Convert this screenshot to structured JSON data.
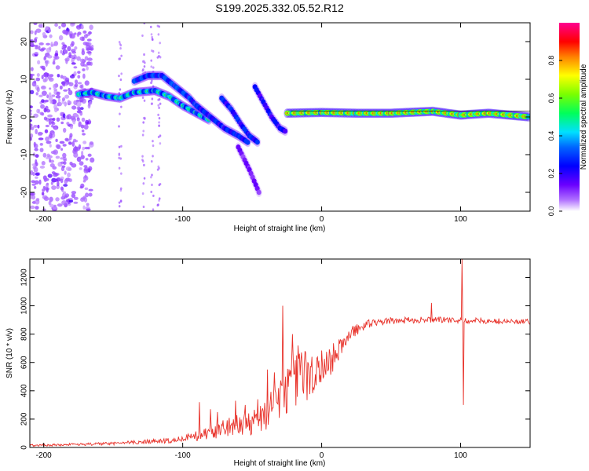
{
  "figure_title": "S199.2025.332.05.52.R12",
  "chart_data": [
    {
      "type": "heatmap",
      "title": "S199.2025.332.05.52.R12",
      "xlabel": "Height of straight line (km)",
      "ylabel": "Frequency (Hz)",
      "xlim": [
        -210,
        150
      ],
      "ylim": [
        -25,
        25
      ],
      "x_ticks": [
        -200,
        -100,
        0,
        100
      ],
      "x_tick_labels": [
        "-200",
        "-100",
        "0",
        "100"
      ],
      "y_ticks": [
        20,
        10,
        0,
        -10,
        -20
      ],
      "y_tick_labels": [
        "20",
        "10",
        "0",
        "-10",
        "-20"
      ],
      "grid": false,
      "colorbar": {
        "label": "Normalized spectral amplitude",
        "range": [
          0,
          1
        ],
        "ticks": [
          0.0,
          0.2,
          0.4,
          0.6,
          0.8
        ],
        "tick_labels": [
          "0.0",
          "0.2",
          "0.4",
          "0.6",
          "0.8"
        ],
        "colormap": "rainbow (white-violet-blue-cyan-green-yellow-red-magenta)"
      },
      "ridges": [
        {
          "name": "main-band-left",
          "points": [
            [
              -175,
              6
            ],
            [
              -165,
              6.5
            ],
            [
              -155,
              5.5
            ],
            [
              -145,
              5
            ],
            [
              -135,
              6.5
            ],
            [
              -120,
              7
            ],
            [
              -110,
              5.5
            ],
            [
              -100,
              3
            ],
            [
              -90,
              1
            ],
            [
              -80,
              -1
            ]
          ],
          "amplitude": 0.55
        },
        {
          "name": "upper-arc",
          "points": [
            [
              -135,
              9.5
            ],
            [
              -125,
              11
            ],
            [
              -115,
              11
            ],
            [
              -105,
              8
            ],
            [
              -95,
              5
            ],
            [
              -88,
              2
            ]
          ],
          "amplitude": 0.45
        },
        {
          "name": "dispersive-branch-1",
          "points": [
            [
              -90,
              3
            ],
            [
              -80,
              0
            ],
            [
              -70,
              -3
            ],
            [
              -60,
              -5
            ],
            [
              -52,
              -7
            ]
          ],
          "amplitude": 0.4
        },
        {
          "name": "dispersive-branch-2",
          "points": [
            [
              -72,
              5
            ],
            [
              -65,
              2
            ],
            [
              -58,
              -2
            ],
            [
              -52,
              -5
            ],
            [
              -45,
              -7
            ]
          ],
          "amplitude": 0.4
        },
        {
          "name": "dispersive-branch-3",
          "points": [
            [
              -48,
              8
            ],
            [
              -42,
              4
            ],
            [
              -36,
              0
            ],
            [
              -30,
              -3
            ],
            [
              -25,
              -4
            ]
          ],
          "amplitude": 0.35
        },
        {
          "name": "steep-tail",
          "points": [
            [
              -60,
              -8
            ],
            [
              -52,
              -14
            ],
            [
              -44,
              -21
            ]
          ],
          "amplitude": 0.2
        },
        {
          "name": "stable-band",
          "points": [
            [
              -25,
              1
            ],
            [
              0,
              1.2
            ],
            [
              25,
              1
            ],
            [
              50,
              1
            ],
            [
              80,
              1.5
            ],
            [
              100,
              0.5
            ],
            [
              120,
              1
            ],
            [
              150,
              0
            ]
          ],
          "amplitude": 0.85
        }
      ]
    },
    {
      "type": "line",
      "title": "",
      "xlabel": "Height of straight line (km)",
      "ylabel": "SNR (10 * v/v)",
      "xlim": [
        -210,
        150
      ],
      "ylim": [
        0,
        1330
      ],
      "x_ticks": [
        -200,
        -100,
        0,
        100
      ],
      "x_tick_labels": [
        "-200",
        "-100",
        "0",
        "100"
      ],
      "y_ticks": [
        0,
        200,
        400,
        600,
        800,
        1000,
        1200
      ],
      "y_tick_labels": [
        "0",
        "200",
        "400",
        "600",
        "800",
        "1000",
        "1200"
      ],
      "grid": false,
      "series": [
        {
          "name": "SNR",
          "color": "#e8322a",
          "trend_x": [
            -210,
            -190,
            -170,
            -150,
            -130,
            -110,
            -100,
            -90,
            -80,
            -70,
            -60,
            -50,
            -40,
            -35,
            -30,
            -25,
            -20,
            -15,
            -10,
            -5,
            0,
            5,
            10,
            15,
            20,
            25,
            30,
            40,
            50,
            60,
            70,
            80,
            90,
            100,
            110,
            120,
            130,
            140,
            150
          ],
          "trend_y": [
            15,
            18,
            22,
            28,
            38,
            48,
            62,
            82,
            110,
            135,
            158,
            182,
            225,
            300,
            380,
            430,
            460,
            490,
            510,
            530,
            560,
            600,
            650,
            730,
            790,
            835,
            862,
            882,
            893,
            898,
            900,
            902,
            900,
            897,
            895,
            893,
            890,
            888,
            885
          ],
          "noise_amplitude_x": [
            -210,
            -150,
            -100,
            -80,
            -60,
            -40,
            -30,
            -20,
            -10,
            0,
            10,
            20,
            40,
            80,
            150
          ],
          "noise_amplitude_y": [
            8,
            10,
            20,
            50,
            80,
            110,
            170,
            200,
            180,
            140,
            100,
            50,
            25,
            20,
            20
          ],
          "spikes": [
            [
              -88,
              320
            ],
            [
              -80,
              270
            ],
            [
              -75,
              250
            ],
            [
              -62,
              330
            ],
            [
              -55,
              300
            ],
            [
              -46,
              340
            ],
            [
              -39,
              550
            ],
            [
              -34,
              530
            ],
            [
              -28,
              1000
            ],
            [
              -26,
              500
            ],
            [
              -21,
              800
            ],
            [
              -17,
              720
            ],
            [
              -12,
              680
            ],
            [
              -7,
              640
            ],
            [
              79,
              1020
            ],
            [
              101,
              1330
            ],
            [
              102,
              300
            ],
            [
              104,
              880
            ]
          ]
        }
      ]
    }
  ]
}
